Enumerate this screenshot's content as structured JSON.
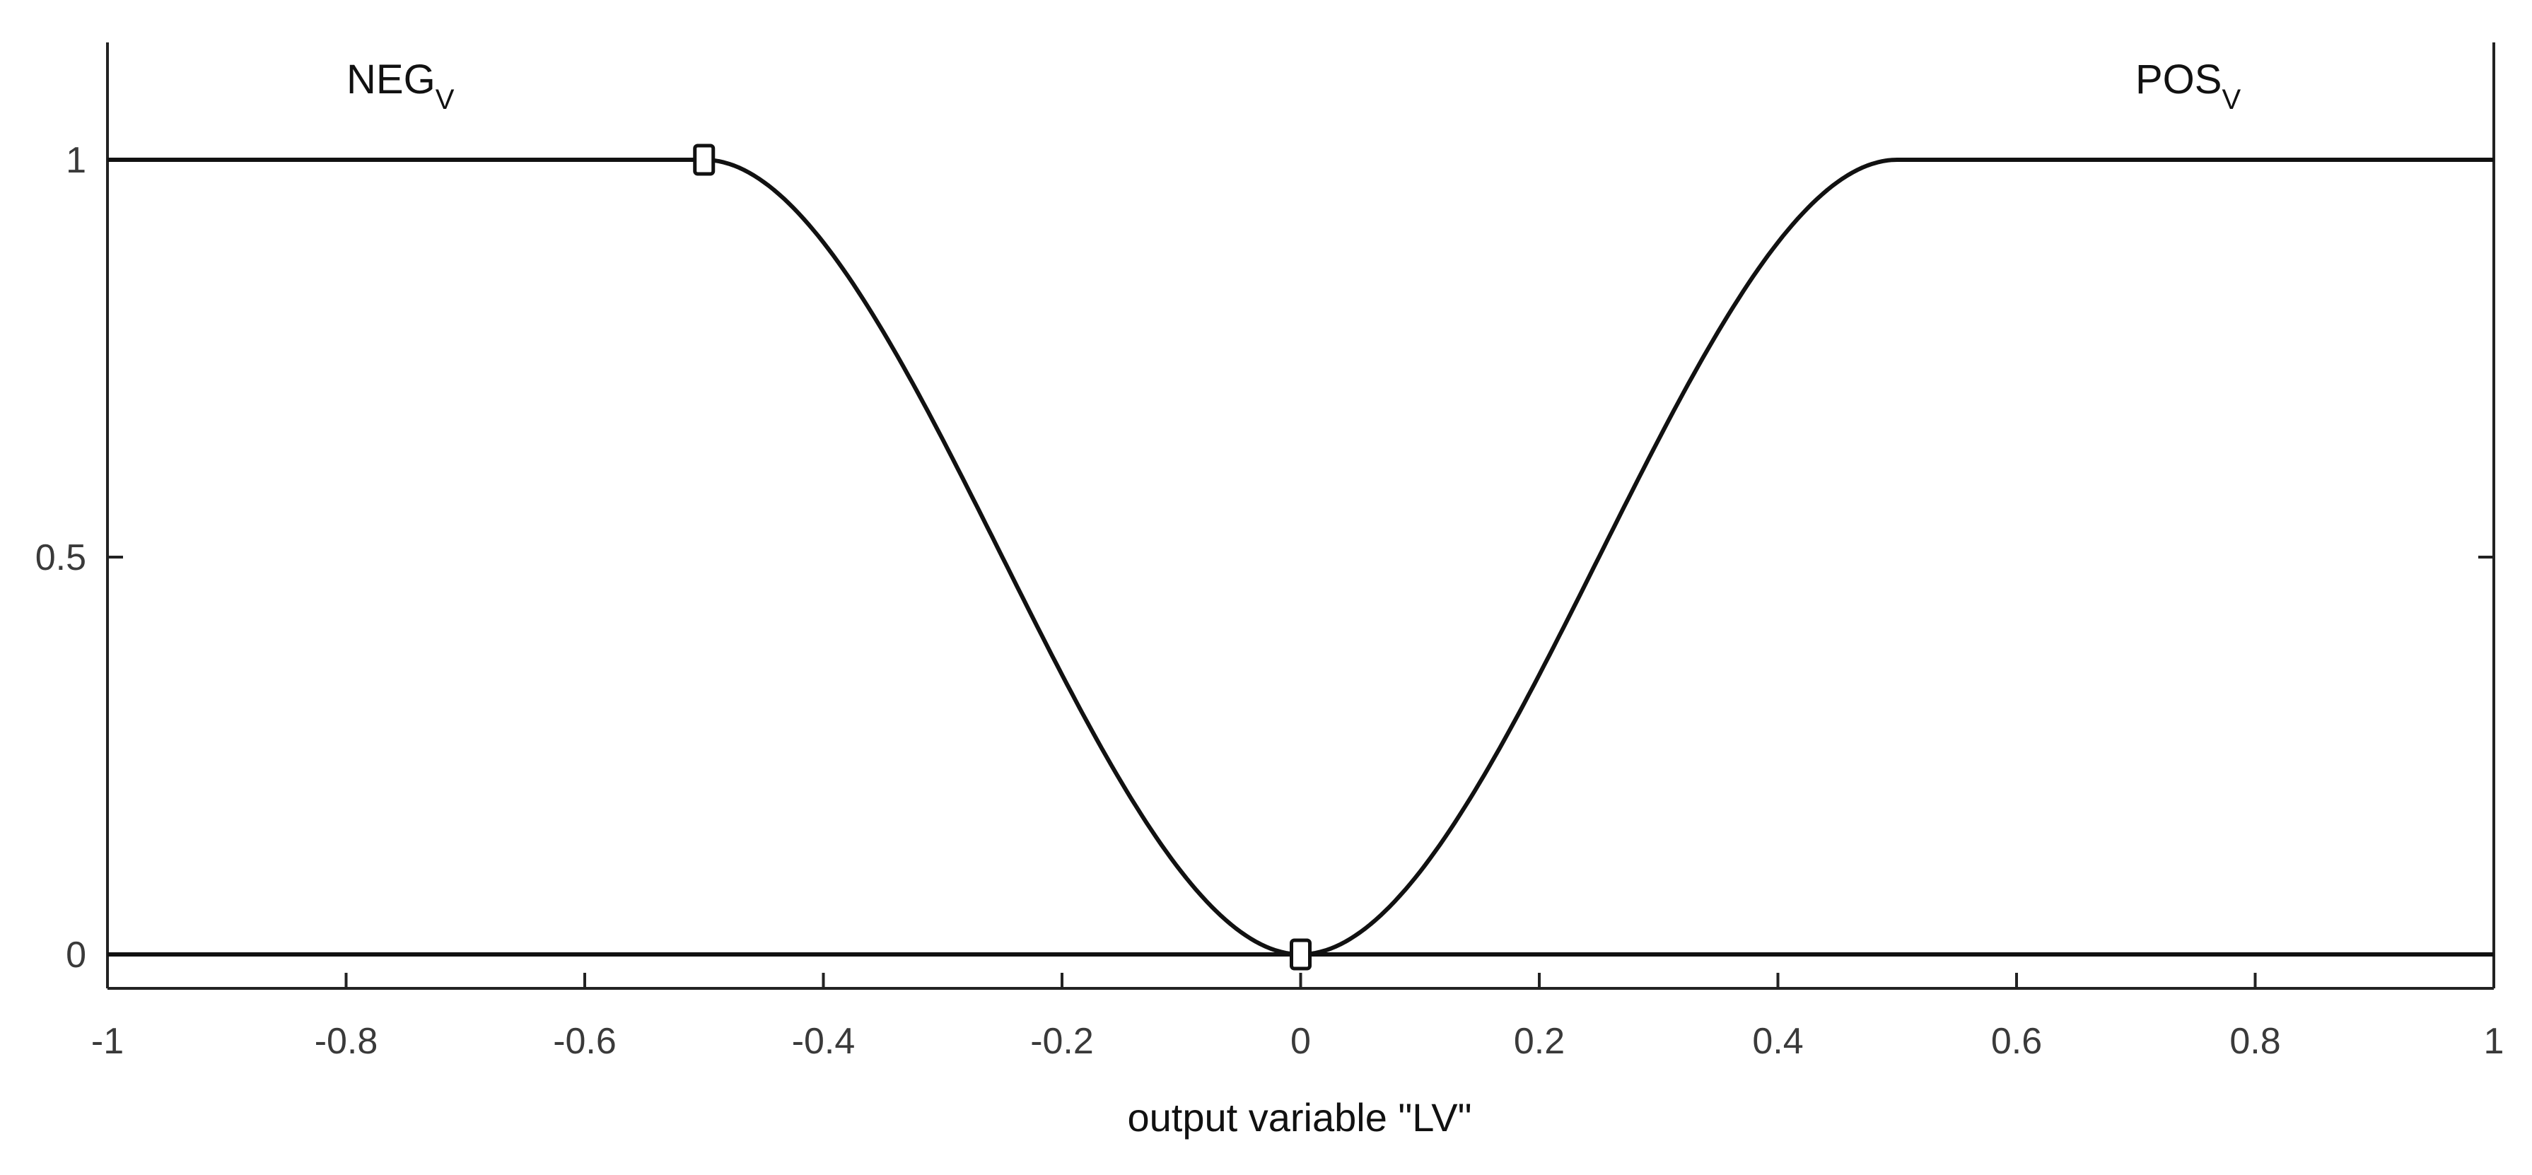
{
  "chart_data": {
    "type": "line",
    "xlabel": "output variable \"LV\"",
    "ylabel": "",
    "xlim": [
      -1,
      1
    ],
    "ylim": [
      0,
      1
    ],
    "x_ticks": [
      -1,
      -0.8,
      -0.6,
      -0.4,
      -0.2,
      0,
      0.2,
      0.4,
      0.6,
      0.8,
      1
    ],
    "x_tick_labels": [
      "-1",
      "-0.8",
      "-0.6",
      "-0.4",
      "-0.2",
      "0",
      "0.2",
      "0.4",
      "0.6",
      "0.8",
      "1"
    ],
    "y_ticks": [
      0,
      0.5,
      1
    ],
    "y_tick_labels": [
      "0",
      "0.5",
      "1"
    ],
    "grid": false,
    "series": [
      {
        "name": "NEG",
        "subscript": "V",
        "shape": "z-shaped",
        "x": [
          -1,
          -0.5,
          -0.45,
          -0.4,
          -0.35,
          -0.3,
          -0.25,
          -0.2,
          -0.15,
          -0.1,
          -0.05,
          0,
          1
        ],
        "y": [
          1,
          1,
          0.98,
          0.92,
          0.82,
          0.68,
          0.5,
          0.32,
          0.18,
          0.08,
          0.02,
          0,
          0
        ]
      },
      {
        "name": "POS",
        "subscript": "V",
        "shape": "s-shaped",
        "x": [
          -1,
          0,
          0.05,
          0.1,
          0.15,
          0.2,
          0.25,
          0.3,
          0.35,
          0.4,
          0.45,
          0.5,
          1
        ],
        "y": [
          0,
          0,
          0.02,
          0.08,
          0.18,
          0.32,
          0.5,
          0.68,
          0.82,
          0.92,
          0.98,
          1,
          1
        ]
      }
    ],
    "markers": [
      {
        "x": -0.5,
        "y": 1
      },
      {
        "x": 0,
        "y": 0
      }
    ],
    "labels": {
      "neg": {
        "main": "NEG",
        "sub": "V"
      },
      "pos": {
        "main": "POS",
        "sub": "V"
      }
    },
    "colors": {
      "line": "#111111",
      "axis": "#222222",
      "text": "#3a3a3a"
    }
  }
}
